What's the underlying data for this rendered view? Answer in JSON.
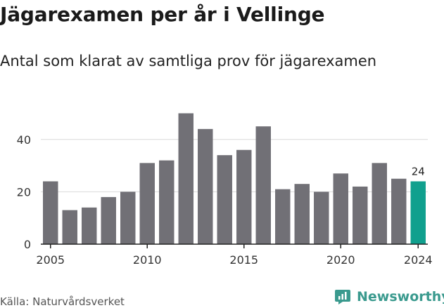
{
  "title": "Jägarexamen per år i Vellinge",
  "subtitle": "Antal som klarat av samtliga prov för jägarexamen",
  "source": "Källa: Naturvårdsverket",
  "brand": {
    "name": "Newsworthy",
    "icon": "newsworthy-logo-icon",
    "color": "#3a9a8e"
  },
  "colors": {
    "bar": "#717076",
    "highlight": "#10a08e",
    "grid": "#d9d9d9",
    "axis": "#222222",
    "text": "#333333"
  },
  "chart_data": {
    "type": "bar",
    "title": "Jägarexamen per år i Vellinge",
    "subtitle": "Antal som klarat av samtliga prov för jägarexamen",
    "xlabel": "",
    "ylabel": "",
    "categories": [
      "2005",
      "2006",
      "2007",
      "2008",
      "2009",
      "2010",
      "2011",
      "2012",
      "2013",
      "2014",
      "2015",
      "2016",
      "2017",
      "2018",
      "2019",
      "2020",
      "2021",
      "2022",
      "2023",
      "2024"
    ],
    "values": [
      24,
      13,
      14,
      18,
      20,
      31,
      32,
      50,
      44,
      34,
      36,
      45,
      21,
      23,
      20,
      27,
      22,
      31,
      25,
      24
    ],
    "highlight_category": "2024",
    "data_labels": [
      {
        "category": "2024",
        "text": "24"
      }
    ],
    "ylim": [
      0,
      52
    ],
    "yticks": [
      0,
      20,
      40
    ],
    "xticks": [
      "2005",
      "2010",
      "2015",
      "2020",
      "2024"
    ],
    "grid": true,
    "legend": "none"
  }
}
